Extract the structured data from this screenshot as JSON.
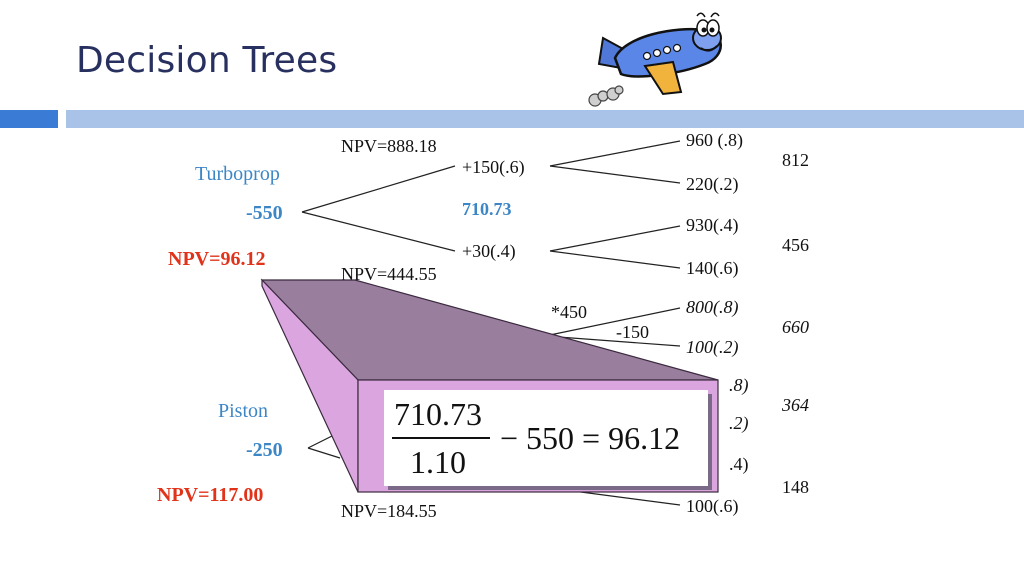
{
  "slide": {
    "title": "Decision Trees",
    "accent_colors": {
      "blue_bar": "#3a7bd5",
      "light_bar": "#a9c3e8",
      "callout": "#dba5e0",
      "red": "#e0331a",
      "blue": "#3d86c6"
    }
  },
  "turboprop": {
    "label": "Turboprop",
    "cost": "-550",
    "npv": "NPV=96.12",
    "npv_high": "NPV=888.18",
    "npv_low": "NPV=444.55",
    "branch_high": "+150(.6)",
    "branch_low": "+30(.4)",
    "pv_value": "710.73",
    "outcomes": [
      "960 (.8)",
      "220(.2)",
      "930(.4)",
      "140(.6)"
    ],
    "expected": [
      "812",
      "456"
    ]
  },
  "piston": {
    "label": "Piston",
    "cost": "-250",
    "npv": "NPV=117.00",
    "npv_low": "NPV=184.55",
    "expansion": "*450",
    "expansion_cost": "-150",
    "outcomes_italic": [
      "800(.8)",
      "100(.2)",
      ".8)",
      ".2)"
    ],
    "outcomes": [
      ".4)",
      "100(.6)"
    ],
    "expected_italic": [
      "660",
      "364"
    ],
    "expected": [
      "148"
    ]
  },
  "formula": {
    "numerator": "710.73",
    "denominator": "1.10",
    "rhs": "− 550 = 96.12"
  },
  "illustration": "cartoon-airplane"
}
